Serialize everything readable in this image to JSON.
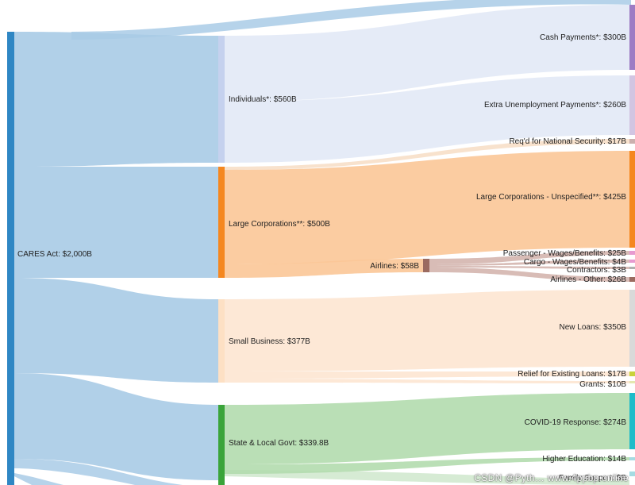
{
  "chart_data": {
    "type": "sankey",
    "title": "",
    "nodes": [
      {
        "id": "cares",
        "label": "CARES Act: $2,000B",
        "value": 2000,
        "color": "#2f87c4"
      },
      {
        "id": "ind",
        "label": "Individuals*: $560B",
        "value": 560,
        "color": "#b8c7e8"
      },
      {
        "id": "lc",
        "label": "Large Corporations**: $500B",
        "value": 500,
        "color": "#f5871f"
      },
      {
        "id": "sb",
        "label": "Small Business: $377B",
        "value": 377,
        "color": "#fcd7b4"
      },
      {
        "id": "slg",
        "label": "State & Local Govt: $339.8B",
        "value": 339.8,
        "color": "#3aa43a"
      },
      {
        "id": "air",
        "label": "Airlines: $58B",
        "value": 58,
        "color": "#9b6b60"
      },
      {
        "id": "cash",
        "label": "Cash Payments*: $300B",
        "value": 300,
        "color": "#9d7cc4"
      },
      {
        "id": "unemp",
        "label": "Extra Unemployment Payments*: $260B",
        "value": 260,
        "color": "#c9b8dc"
      },
      {
        "id": "natsec",
        "label": "Req'd for National Security: $17B",
        "value": 17,
        "color": "#c7a8a8"
      },
      {
        "id": "lcu",
        "label": "Large Corporations - Unspecified**: $425B",
        "value": 425,
        "color": "#f5871f"
      },
      {
        "id": "pwb",
        "label": "Passenger - Wages/Benefits: $25B",
        "value": 25,
        "color": "#e79ad0"
      },
      {
        "id": "cwb",
        "label": "Cargo - Wages/Benefits: $4B",
        "value": 4,
        "color": "#e79ad0"
      },
      {
        "id": "con",
        "label": "Contractors: $3B",
        "value": 3,
        "color": "#aaaaaa"
      },
      {
        "id": "airo",
        "label": "Airlines - Other: $26B",
        "value": 26,
        "color": "#9b6b60"
      },
      {
        "id": "newl",
        "label": "New Loans: $350B",
        "value": 350,
        "color": "#d0d0d0"
      },
      {
        "id": "relief",
        "label": "Relief for Existing Loans: $17B",
        "value": 17,
        "color": "#c9d23a"
      },
      {
        "id": "grants",
        "label": "Grants: $10B",
        "value": 10,
        "color": "#e0e6a0"
      },
      {
        "id": "covid",
        "label": "COVID-19 Response: $274B",
        "value": 274,
        "color": "#1fbcc9"
      },
      {
        "id": "hied",
        "label": "Higher Education: $14B",
        "value": 14,
        "color": "#9ad4dc"
      },
      {
        "id": "fam",
        "label": "Family Support: $B",
        "value": null,
        "color": "#9ad4dc"
      }
    ],
    "links": [
      {
        "source": "cares",
        "target": "ind",
        "value": 560
      },
      {
        "source": "cares",
        "target": "lc",
        "value": 500
      },
      {
        "source": "cares",
        "target": "sb",
        "value": 377
      },
      {
        "source": "cares",
        "target": "slg",
        "value": 339.8
      },
      {
        "source": "ind",
        "target": "cash",
        "value": 300
      },
      {
        "source": "ind",
        "target": "unemp",
        "value": 260
      },
      {
        "source": "lc",
        "target": "natsec",
        "value": 17
      },
      {
        "source": "lc",
        "target": "lcu",
        "value": 425
      },
      {
        "source": "lc",
        "target": "air",
        "value": 58
      },
      {
        "source": "air",
        "target": "pwb",
        "value": 25
      },
      {
        "source": "air",
        "target": "cwb",
        "value": 4
      },
      {
        "source": "air",
        "target": "con",
        "value": 3
      },
      {
        "source": "air",
        "target": "airo",
        "value": 26
      },
      {
        "source": "sb",
        "target": "newl",
        "value": 350
      },
      {
        "source": "sb",
        "target": "relief",
        "value": 17
      },
      {
        "source": "sb",
        "target": "grants",
        "value": 10
      },
      {
        "source": "slg",
        "target": "covid",
        "value": 274
      },
      {
        "source": "slg",
        "target": "hied",
        "value": 14
      }
    ]
  },
  "watermark": "CSDN @Pyth…    www.4ppbp.online"
}
